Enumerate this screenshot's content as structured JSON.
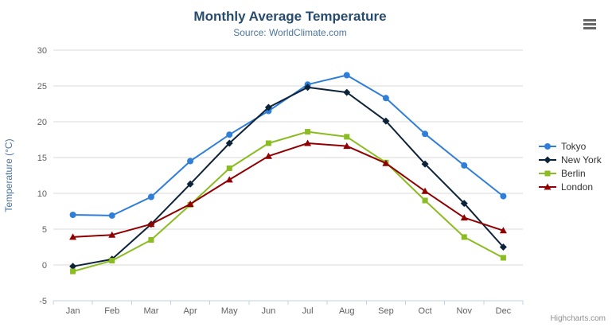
{
  "header": {
    "title": "Monthly Average Temperature",
    "subtitle": "Source: WorldClimate.com"
  },
  "export_menu": {
    "icon": "hamburger-menu-icon"
  },
  "credits": {
    "label": "Highcharts.com"
  },
  "chart_data": {
    "type": "line",
    "title": "Monthly Average Temperature",
    "subtitle": "Source: WorldClimate.com",
    "xlabel": "",
    "ylabel": "Temperature (°C)",
    "categories": [
      "Jan",
      "Feb",
      "Mar",
      "Apr",
      "May",
      "Jun",
      "Jul",
      "Aug",
      "Sep",
      "Oct",
      "Nov",
      "Dec"
    ],
    "ylim": [
      -5,
      30
    ],
    "yticks": [
      30,
      25,
      20,
      15,
      10,
      5,
      0,
      -5
    ],
    "grid": true,
    "legend_position": "right",
    "series": [
      {
        "name": "Tokyo",
        "marker": "circle",
        "color": "#2f7ed8",
        "values": [
          7.0,
          6.9,
          9.5,
          14.5,
          18.2,
          21.5,
          25.2,
          26.5,
          23.3,
          18.3,
          13.9,
          9.6
        ]
      },
      {
        "name": "New York",
        "marker": "diamond",
        "color": "#0d233a",
        "values": [
          -0.2,
          0.8,
          5.7,
          11.3,
          17.0,
          22.0,
          24.8,
          24.1,
          20.1,
          14.1,
          8.6,
          2.5
        ]
      },
      {
        "name": "Berlin",
        "marker": "square",
        "color": "#8bbc21",
        "values": [
          -0.9,
          0.6,
          3.5,
          8.4,
          13.5,
          17.0,
          18.6,
          17.9,
          14.3,
          9.0,
          3.9,
          1.0
        ]
      },
      {
        "name": "London",
        "marker": "triangle",
        "color": "#910000",
        "values": [
          3.9,
          4.2,
          5.7,
          8.5,
          11.9,
          15.2,
          17.0,
          16.6,
          14.2,
          10.3,
          6.6,
          4.8
        ]
      }
    ],
    "style": {
      "title_color": "#274b6d",
      "subtitle_color": "#4d759e",
      "axis_title_color": "#4d759e",
      "axis_label_color": "#606060",
      "grid_color": "#d8d8d8",
      "axis_line_color": "#c0d0e0",
      "legend_text_color": "#333333",
      "background": "#ffffff"
    }
  }
}
